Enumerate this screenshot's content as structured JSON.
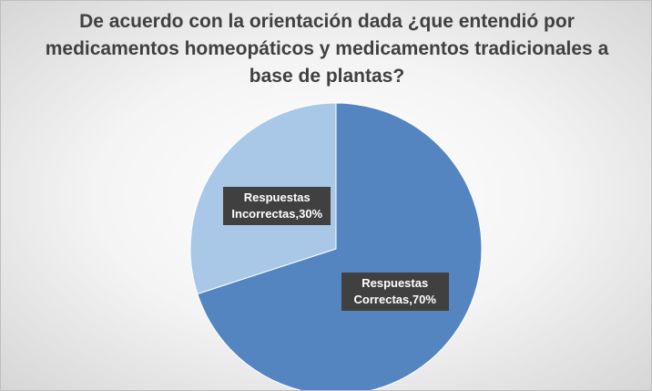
{
  "chart_data": {
    "type": "pie",
    "title": "De acuerdo con la orientación dada ¿que entendió por medicamentos homeopáticos y medicamentos tradicionales a base de plantas?",
    "values": [
      70,
      30
    ],
    "value_labels": [
      "Respuestas Correctas,70%",
      "Respuestas Incorrectas,30%"
    ],
    "colors": [
      "#5585c0",
      "#a9c8e8"
    ]
  }
}
